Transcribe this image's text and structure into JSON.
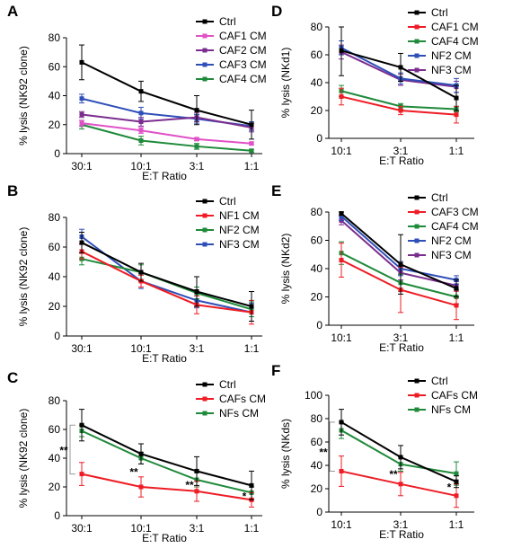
{
  "colors": {
    "Ctrl": "#000000",
    "CAF1 CM": "#e052c7",
    "CAF2 CM": "#7b2d8e",
    "CAF3 CM": "#2f4fb8",
    "CAF4 CM": "#1e8a3a",
    "NF1 CM": "#ee1c24",
    "NF2 CM": "#1e8a3a",
    "NF3 CM": "#2f4fb8",
    "CAF1 CM (D)": "#ee1c24",
    "CAF4 CM (D)": "#1e8a3a",
    "NF2 CM (D)": "#2f4fb8",
    "NF3 CM (D)": "#7b2d8e",
    "CAF3 CM (E)": "#ee1c24",
    "CAF4 CM (E)": "#1e8a3a",
    "NF2 CM (E)": "#2f4fb8",
    "NF3 CM (E)": "#7b2d8e",
    "CAFs CM": "#ee1c24",
    "NFs CM": "#1e8a3a"
  },
  "chart_data": [
    {
      "panel": "A",
      "type": "line",
      "categories": [
        "30:1",
        "10:1",
        "3:1",
        "1:1"
      ],
      "xlabel": "E:T Ratio",
      "ylabel": "% lysis (NK92 clone)",
      "ylim": [
        0,
        80
      ],
      "yticks": [
        0,
        20,
        40,
        60,
        80
      ],
      "legend": "top-right",
      "grid": false,
      "series": [
        {
          "name": "Ctrl",
          "color": "#000000",
          "values": [
            63,
            43,
            30,
            20
          ],
          "err": [
            12,
            7,
            10,
            10
          ]
        },
        {
          "name": "CAF1 CM",
          "color": "#e052c7",
          "values": [
            21,
            16,
            10,
            7
          ],
          "err": [
            2,
            2,
            1,
            1
          ]
        },
        {
          "name": "CAF2 CM",
          "color": "#7b2d8e",
          "values": [
            27,
            22,
            25,
            18
          ],
          "err": [
            2,
            3,
            3,
            3
          ]
        },
        {
          "name": "CAF3 CM",
          "color": "#2f4fb8",
          "values": [
            38,
            28,
            24,
            19
          ],
          "err": [
            3,
            4,
            3,
            3
          ]
        },
        {
          "name": "CAF4 CM",
          "color": "#1e8a3a",
          "values": [
            20,
            9,
            5,
            2
          ],
          "err": [
            3,
            3,
            2,
            1
          ]
        }
      ]
    },
    {
      "panel": "B",
      "type": "line",
      "categories": [
        "30:1",
        "10:1",
        "3:1",
        "1:1"
      ],
      "xlabel": "E:T Ratio",
      "ylabel": "% lysis (NK92 clone)",
      "ylim": [
        0,
        80
      ],
      "yticks": [
        0,
        20,
        40,
        60,
        80
      ],
      "legend": "top-right",
      "grid": false,
      "series": [
        {
          "name": "Ctrl",
          "color": "#000000",
          "values": [
            63,
            43,
            30,
            20
          ],
          "err": [
            7,
            6,
            10,
            10
          ]
        },
        {
          "name": "NF1 CM",
          "color": "#ee1c24",
          "values": [
            57,
            37,
            21,
            16
          ],
          "err": [
            5,
            4,
            6,
            8
          ]
        },
        {
          "name": "NF2 CM",
          "color": "#1e8a3a",
          "values": [
            52,
            43,
            29,
            18
          ],
          "err": [
            4,
            5,
            4,
            5
          ]
        },
        {
          "name": "NF3 CM",
          "color": "#2f4fb8",
          "values": [
            67,
            37,
            24,
            16
          ],
          "err": [
            5,
            5,
            5,
            6
          ]
        }
      ]
    },
    {
      "panel": "C",
      "type": "line",
      "categories": [
        "30:1",
        "10:1",
        "3:1",
        "1:1"
      ],
      "xlabel": "E:T Ratio",
      "ylabel": "% lysis (NK92 clone)",
      "ylim": [
        0,
        80
      ],
      "yticks": [
        0,
        20,
        40,
        60,
        80
      ],
      "legend": "top-right",
      "grid": false,
      "series": [
        {
          "name": "Ctrl",
          "color": "#000000",
          "values": [
            63,
            43,
            31,
            21
          ],
          "err": [
            11,
            7,
            10,
            10
          ]
        },
        {
          "name": "CAFs CM",
          "color": "#ee1c24",
          "values": [
            29,
            20,
            17,
            11
          ],
          "err": [
            8,
            7,
            7,
            5
          ]
        },
        {
          "name": "NFs CM",
          "color": "#1e8a3a",
          "values": [
            59,
            40,
            25,
            16
          ],
          "err": [
            4,
            4,
            5,
            4
          ]
        }
      ],
      "annotations": [
        {
          "text": "**",
          "x": "30:1",
          "y": 46
        },
        {
          "text": "**",
          "x": "10:1",
          "y": 31
        },
        {
          "text": "**",
          "x": "3:1",
          "y": 22
        },
        {
          "text": "*",
          "x": "1:1",
          "y": 14
        }
      ]
    },
    {
      "panel": "D",
      "type": "line",
      "categories": [
        "10:1",
        "3:1",
        "1:1"
      ],
      "xlabel": "E:T Ratio",
      "ylabel": "% lysis (NKd1)",
      "ylim": [
        0,
        80
      ],
      "yticks": [
        0,
        20,
        40,
        60,
        80
      ],
      "legend": "top-right",
      "grid": false,
      "series": [
        {
          "name": "Ctrl",
          "color": "#000000",
          "values": [
            63,
            51,
            29
          ],
          "err": [
            18,
            10,
            9
          ]
        },
        {
          "name": "CAF1 CM",
          "color": "#ee1c24",
          "values": [
            30,
            20,
            17
          ],
          "err": [
            6,
            3,
            6
          ]
        },
        {
          "name": "CAF4 CM",
          "color": "#1e8a3a",
          "values": [
            34,
            23,
            21
          ],
          "err": [
            4,
            2,
            2
          ]
        },
        {
          "name": "NF2 CM",
          "color": "#2f4fb8",
          "values": [
            65,
            43,
            38
          ],
          "err": [
            5,
            4,
            5
          ]
        },
        {
          "name": "NF3 CM",
          "color": "#7b2d8e",
          "values": [
            62,
            42,
            37
          ],
          "err": [
            5,
            4,
            4
          ]
        }
      ]
    },
    {
      "panel": "E",
      "type": "line",
      "categories": [
        "10:1",
        "3:1",
        "1:1"
      ],
      "xlabel": "E:T Ratio",
      "ylabel": "% lysis (NKd2)",
      "ylim": [
        0,
        80
      ],
      "yticks": [
        0,
        20,
        40,
        60,
        80
      ],
      "legend": "top-right",
      "grid": false,
      "series": [
        {
          "name": "Ctrl",
          "color": "#000000",
          "values": [
            79,
            43,
            26
          ],
          "err": [
            1,
            21,
            6
          ]
        },
        {
          "name": "CAF3 CM",
          "color": "#ee1c24",
          "values": [
            46,
            25,
            14
          ],
          "err": [
            12,
            16,
            10
          ]
        },
        {
          "name": "CAF4 CM",
          "color": "#1e8a3a",
          "values": [
            51,
            30,
            20
          ],
          "err": [
            8,
            6,
            5
          ]
        },
        {
          "name": "NF2 CM",
          "color": "#2f4fb8",
          "values": [
            77,
            40,
            32
          ],
          "err": [
            3,
            5,
            3
          ]
        },
        {
          "name": "NF3 CM",
          "color": "#7b2d8e",
          "values": [
            74,
            37,
            28
          ],
          "err": [
            3,
            5,
            3
          ]
        }
      ]
    },
    {
      "panel": "F",
      "type": "line",
      "categories": [
        "10:1",
        "3:1",
        "1:1"
      ],
      "xlabel": "E:T Ratio",
      "ylabel": "% lysis (NKds)",
      "ylim": [
        0,
        100
      ],
      "yticks": [
        0,
        20,
        40,
        60,
        80,
        100
      ],
      "legend": "top-right",
      "grid": false,
      "series": [
        {
          "name": "Ctrl",
          "color": "#000000",
          "values": [
            77,
            47,
            26
          ],
          "err": [
            11,
            10,
            5
          ]
        },
        {
          "name": "CAFs CM",
          "color": "#ee1c24",
          "values": [
            35,
            24,
            14
          ],
          "err": [
            13,
            10,
            10
          ]
        },
        {
          "name": "NFs CM",
          "color": "#1e8a3a",
          "values": [
            70,
            41,
            33
          ],
          "err": [
            7,
            6,
            10
          ]
        }
      ],
      "annotations": [
        {
          "text": "**",
          "x": "10:1",
          "y": 52
        },
        {
          "text": "**",
          "x": "3:1",
          "y": 33
        },
        {
          "text": "*",
          "x": "1:1",
          "y": 22
        }
      ]
    }
  ]
}
